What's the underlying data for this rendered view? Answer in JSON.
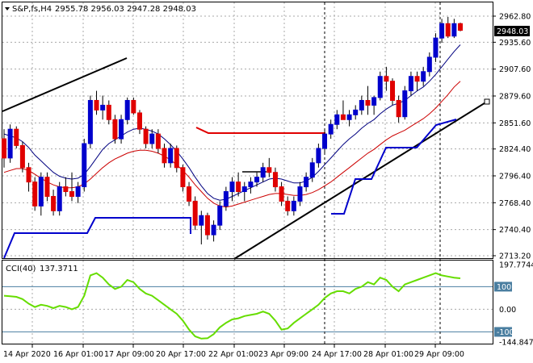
{
  "header": {
    "symbol": "S&P,fs,H4",
    "ohlc": "2955.78 2956.03 2947.28 2948.03"
  },
  "price_panel": {
    "current_price": "2948.03",
    "y_ticks": [
      "2962.80",
      "2935.60",
      "2907.60",
      "2879.60",
      "2851.60",
      "2824.40",
      "2796.40",
      "2768.40",
      "2740.40",
      "2713.20"
    ]
  },
  "indicator_panel": {
    "label": "CCI(40)",
    "value": "137.3711",
    "y_ticks": [
      "197.7744",
      "100",
      "0.00",
      "-100",
      "-144.8475"
    ],
    "levels": [
      "100",
      "-100"
    ]
  },
  "x_axis": {
    "labels": [
      "14 Apr 2020",
      "16 Apr 01:00",
      "17 Apr 09:00",
      "20 Apr 17:00",
      "22 Apr 01:00",
      "23 Apr 09:00",
      "24 Apr 17:00",
      "28 Apr 01:00",
      "29 Apr 09:00"
    ]
  },
  "colors": {
    "bull": "#0000cc",
    "bear": "#e00000",
    "ma_fast": "#000080",
    "ma_slow": "#cc0000",
    "cci": "#66dd00",
    "grid": "#a8a8a8",
    "level_line": "#4a7ea0"
  },
  "chart_data": {
    "type": "candlestick",
    "ylim": [
      2713.2,
      2962.8
    ],
    "cci_ylim": [
      -144.8475,
      197.7744
    ],
    "candles": [
      [
        2835,
        2845,
        2805,
        2815
      ],
      [
        2815,
        2850,
        2810,
        2845
      ],
      [
        2845,
        2848,
        2825,
        2828
      ],
      [
        2828,
        2832,
        2800,
        2805
      ],
      [
        2805,
        2810,
        2780,
        2790
      ],
      [
        2790,
        2795,
        2760,
        2765
      ],
      [
        2765,
        2800,
        2755,
        2795
      ],
      [
        2795,
        2800,
        2770,
        2775
      ],
      [
        2775,
        2782,
        2755,
        2760
      ],
      [
        2760,
        2790,
        2755,
        2785
      ],
      [
        2785,
        2795,
        2775,
        2780
      ],
      [
        2780,
        2800,
        2770,
        2775
      ],
      [
        2775,
        2790,
        2768,
        2785
      ],
      [
        2785,
        2835,
        2780,
        2830
      ],
      [
        2830,
        2880,
        2825,
        2875
      ],
      [
        2875,
        2885,
        2860,
        2865
      ],
      [
        2865,
        2880,
        2855,
        2870
      ],
      [
        2870,
        2875,
        2850,
        2855
      ],
      [
        2855,
        2860,
        2830,
        2835
      ],
      [
        2835,
        2860,
        2830,
        2855
      ],
      [
        2855,
        2878,
        2850,
        2875
      ],
      [
        2875,
        2878,
        2860,
        2862
      ],
      [
        2862,
        2865,
        2840,
        2845
      ],
      [
        2845,
        2848,
        2825,
        2830
      ],
      [
        2830,
        2845,
        2825,
        2840
      ],
      [
        2840,
        2845,
        2820,
        2825
      ],
      [
        2825,
        2830,
        2805,
        2810
      ],
      [
        2810,
        2830,
        2805,
        2825
      ],
      [
        2825,
        2828,
        2800,
        2805
      ],
      [
        2805,
        2808,
        2780,
        2785
      ],
      [
        2785,
        2790,
        2765,
        2770
      ],
      [
        2770,
        2775,
        2740,
        2745
      ],
      [
        2745,
        2760,
        2725,
        2755
      ],
      [
        2755,
        2758,
        2730,
        2735
      ],
      [
        2735,
        2750,
        2728,
        2745
      ],
      [
        2745,
        2770,
        2740,
        2765
      ],
      [
        2765,
        2785,
        2760,
        2780
      ],
      [
        2780,
        2795,
        2770,
        2790
      ],
      [
        2790,
        2800,
        2775,
        2780
      ],
      [
        2780,
        2790,
        2770,
        2785
      ],
      [
        2785,
        2795,
        2778,
        2790
      ],
      [
        2790,
        2800,
        2785,
        2795
      ],
      [
        2795,
        2810,
        2790,
        2805
      ],
      [
        2805,
        2815,
        2795,
        2800
      ],
      [
        2800,
        2805,
        2780,
        2785
      ],
      [
        2785,
        2790,
        2765,
        2770
      ],
      [
        2770,
        2775,
        2755,
        2760
      ],
      [
        2760,
        2775,
        2755,
        2770
      ],
      [
        2770,
        2790,
        2765,
        2785
      ],
      [
        2785,
        2800,
        2780,
        2795
      ],
      [
        2795,
        2815,
        2790,
        2810
      ],
      [
        2810,
        2830,
        2805,
        2825
      ],
      [
        2825,
        2845,
        2820,
        2840
      ],
      [
        2840,
        2855,
        2835,
        2850
      ],
      [
        2850,
        2865,
        2845,
        2860
      ],
      [
        2860,
        2875,
        2855,
        2855
      ],
      [
        2855,
        2865,
        2848,
        2860
      ],
      [
        2860,
        2870,
        2855,
        2865
      ],
      [
        2865,
        2880,
        2860,
        2875
      ],
      [
        2875,
        2890,
        2860,
        2870
      ],
      [
        2870,
        2880,
        2860,
        2878
      ],
      [
        2878,
        2905,
        2875,
        2900
      ],
      [
        2900,
        2910,
        2885,
        2895
      ],
      [
        2895,
        2898,
        2870,
        2875
      ],
      [
        2875,
        2880,
        2852,
        2858
      ],
      [
        2858,
        2890,
        2855,
        2885
      ],
      [
        2885,
        2905,
        2880,
        2900
      ],
      [
        2900,
        2905,
        2885,
        2895
      ],
      [
        2895,
        2910,
        2890,
        2905
      ],
      [
        2905,
        2925,
        2900,
        2920
      ],
      [
        2920,
        2945,
        2915,
        2940
      ],
      [
        2940,
        2960,
        2935,
        2955
      ],
      [
        2955,
        2962,
        2940,
        2942
      ],
      [
        2942,
        2960,
        2940,
        2955
      ],
      [
        2955,
        2956,
        2947,
        2948
      ]
    ],
    "ma_fast": [
      2840,
      2838,
      2836,
      2832,
      2826,
      2818,
      2812,
      2806,
      2800,
      2796,
      2794,
      2793,
      2794,
      2798,
      2806,
      2815,
      2824,
      2830,
      2834,
      2838,
      2842,
      2845,
      2846,
      2845,
      2843,
      2840,
      2835,
      2829,
      2822,
      2814,
      2805,
      2795,
      2786,
      2778,
      2773,
      2771,
      2772,
      2775,
      2778,
      2781,
      2784,
      2787,
      2790,
      2793,
      2794,
      2793,
      2791,
      2789,
      2789,
      2791,
      2795,
      2801,
      2808,
      2815,
      2822,
      2829,
      2835,
      2840,
      2846,
      2851,
      2855,
      2861,
      2866,
      2870,
      2872,
      2875,
      2880,
      2885,
      2889,
      2895,
      2902,
      2910,
      2918,
      2926,
      2933
    ],
    "ma_slow": [
      2800,
      2802,
      2804,
      2804,
      2802,
      2798,
      2794,
      2790,
      2787,
      2785,
      2784,
      2784,
      2785,
      2788,
      2793,
      2799,
      2805,
      2810,
      2814,
      2817,
      2820,
      2822,
      2823,
      2823,
      2822,
      2820,
      2817,
      2813,
      2808,
      2802,
      2795,
      2787,
      2780,
      2773,
      2768,
      2765,
      2764,
      2765,
      2767,
      2769,
      2771,
      2773,
      2775,
      2777,
      2778,
      2778,
      2777,
      2776,
      2776,
      2777,
      2779,
      2782,
      2786,
      2790,
      2795,
      2800,
      2805,
      2810,
      2815,
      2820,
      2824,
      2829,
      2834,
      2838,
      2841,
      2844,
      2848,
      2852,
      2856,
      2861,
      2867,
      2874,
      2881,
      2889,
      2895
    ],
    "cci": [
      60,
      58,
      55,
      45,
      25,
      10,
      20,
      15,
      5,
      15,
      10,
      0,
      10,
      60,
      150,
      160,
      140,
      110,
      90,
      100,
      130,
      120,
      90,
      70,
      60,
      40,
      20,
      0,
      -20,
      -50,
      -90,
      -120,
      -130,
      -128,
      -110,
      -80,
      -60,
      -45,
      -40,
      -30,
      -25,
      -20,
      -10,
      -20,
      -50,
      -90,
      -85,
      -60,
      -40,
      -20,
      0,
      20,
      50,
      70,
      80,
      80,
      70,
      90,
      100,
      120,
      110,
      140,
      130,
      100,
      80,
      110,
      120,
      130,
      140,
      150,
      160,
      150,
      145,
      140,
      137
    ]
  }
}
